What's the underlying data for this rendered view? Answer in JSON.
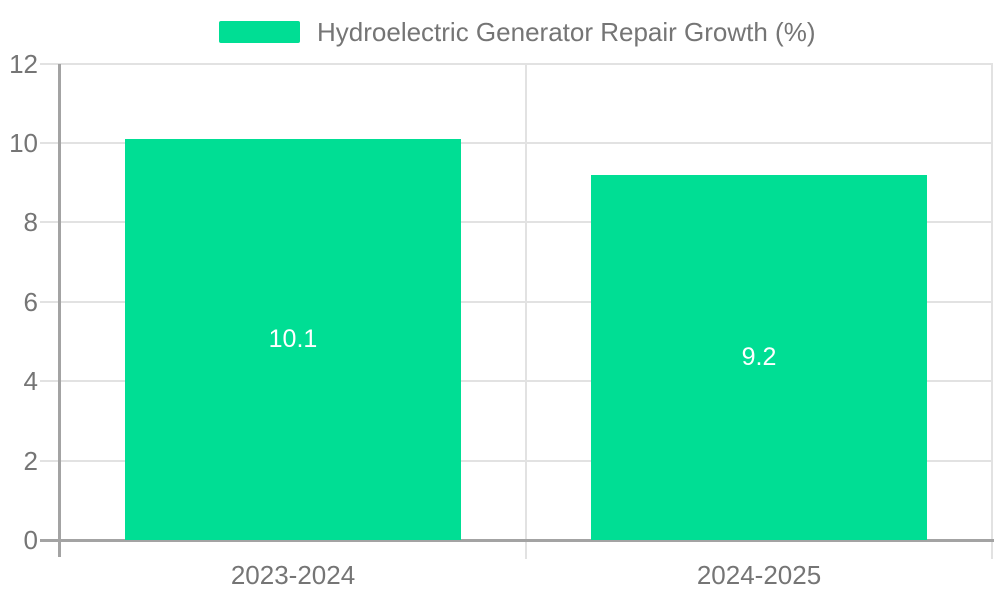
{
  "chart_data": {
    "type": "bar",
    "title": "Hydroelectric Generator Repair Growth (%)",
    "categories": [
      "2023-2024",
      "2024-2025"
    ],
    "values": [
      10.1,
      9.2
    ],
    "value_labels": [
      "10.1",
      "9.2"
    ],
    "ylim": [
      0,
      12
    ],
    "yticks": [
      0,
      2,
      4,
      6,
      8,
      10,
      12
    ],
    "xlabel": "",
    "ylabel": "",
    "grid": true,
    "legend_position": "top-center",
    "legend_entries": [
      "Hydroelectric Generator Repair Growth (%)"
    ],
    "colors": {
      "bar": "#00DE94",
      "axis": "#A3A3A3",
      "grid": "#E2E2E2",
      "text": "#757575",
      "value_label": "#FFFFFF",
      "background": "#FFFFFF"
    }
  }
}
